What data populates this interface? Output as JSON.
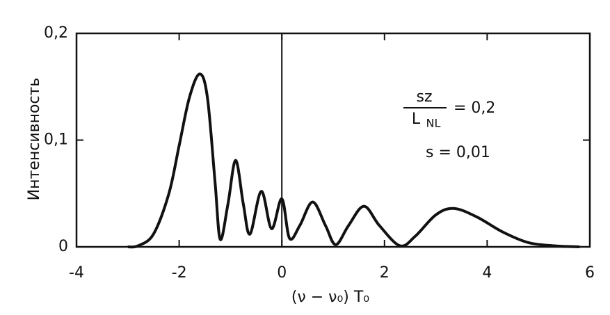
{
  "chart_data": {
    "type": "line",
    "y_label": "Интенсивность",
    "x_label": "(ν − ν₀) T₀",
    "x": [
      -3.0,
      -2.8,
      -2.5,
      -2.2,
      -2.0,
      -1.8,
      -1.6,
      -1.45,
      -1.3,
      -1.2,
      -1.05,
      -0.9,
      -0.75,
      -0.62,
      -0.4,
      -0.2,
      0.0,
      0.15,
      0.35,
      0.6,
      0.85,
      1.05,
      1.3,
      1.6,
      1.9,
      2.3,
      2.6,
      3.0,
      3.35,
      3.8,
      4.3,
      4.8,
      5.3,
      5.8
    ],
    "series": [
      {
        "color": "#111111",
        "values": [
          0,
          0.001,
          0.012,
          0.05,
          0.095,
          0.14,
          0.162,
          0.14,
          0.06,
          0.007,
          0.04,
          0.081,
          0.04,
          0.012,
          0.052,
          0.017,
          0.045,
          0.008,
          0.02,
          0.042,
          0.02,
          0.002,
          0.02,
          0.038,
          0.02,
          0.001,
          0.01,
          0.03,
          0.036,
          0.028,
          0.014,
          0.004,
          0.001,
          0
        ]
      }
    ],
    "xlim": [
      -4,
      6
    ],
    "ylim": [
      0,
      0.2
    ],
    "xticks": [
      -4,
      -2,
      0,
      2,
      4,
      6
    ],
    "yticks": [
      {
        "value": 0,
        "label": "0"
      },
      {
        "value": 0.1,
        "label": "0,1"
      },
      {
        "value": 0.2,
        "label": "0,2"
      }
    ],
    "vlines": [
      0
    ],
    "annotations": [
      {
        "numerator": "sz",
        "denominator": "L",
        "denominator_sub": "NL",
        "rhs": "= 0,2"
      },
      {
        "text": "s = 0,01"
      }
    ]
  }
}
